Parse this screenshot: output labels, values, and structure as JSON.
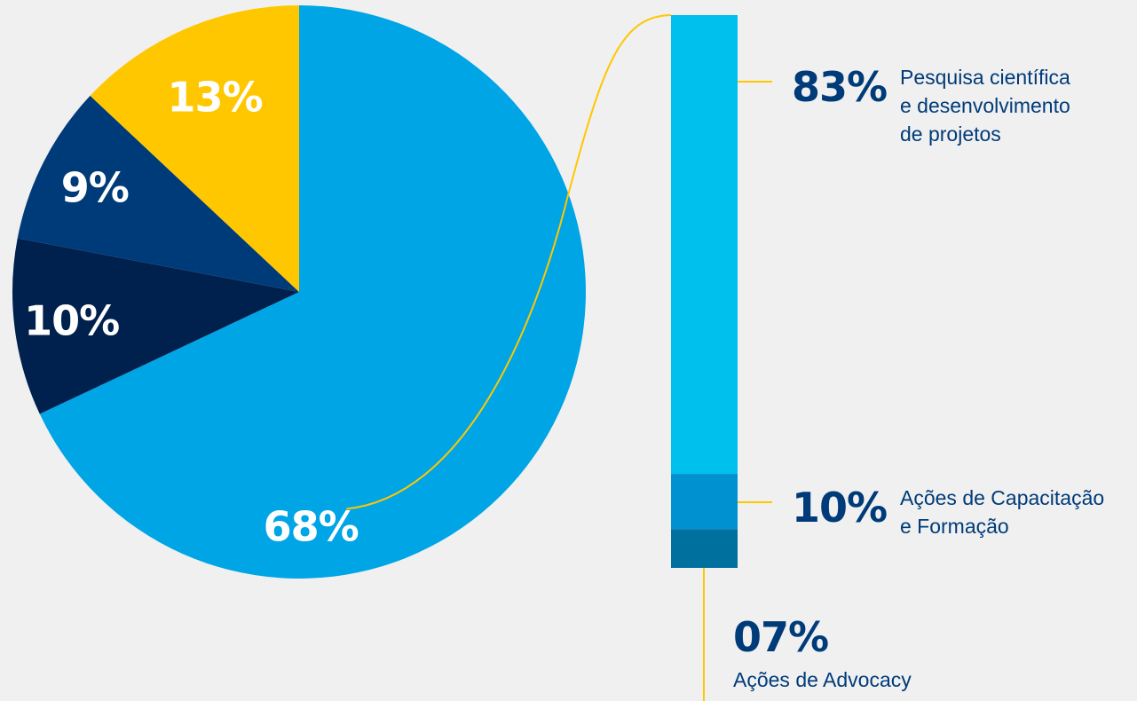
{
  "chart_data": [
    {
      "type": "pie",
      "slices": [
        {
          "label": "68%",
          "value": 68,
          "color": "#00a5e6"
        },
        {
          "label": "10%",
          "value": 10,
          "color": "#00204e"
        },
        {
          "label": "9%",
          "value": 9,
          "color": "#003b79"
        },
        {
          "label": "13%",
          "value": 13,
          "color": "#ffc700"
        }
      ]
    },
    {
      "type": "bar",
      "stacked": true,
      "breakdown_of": "68%",
      "segments": [
        {
          "label": "83%",
          "value": 83,
          "name_lines": [
            "Pesquisa científica",
            "e desenvolvimento",
            "de projetos"
          ],
          "color": "#00c0ee"
        },
        {
          "label": "10%",
          "value": 10,
          "name_lines": [
            "Ações de Capacitação",
            "e Formação"
          ],
          "color": "#0091d1"
        },
        {
          "label": "07%",
          "value": 7,
          "name_lines": [
            "Ações de Advocacy"
          ],
          "color": "#00719f"
        }
      ]
    }
  ],
  "colors": {
    "background": "#f0f0f0",
    "connector": "#ffc700",
    "label_dark": "#003b79",
    "label_light": "#ffffff"
  }
}
